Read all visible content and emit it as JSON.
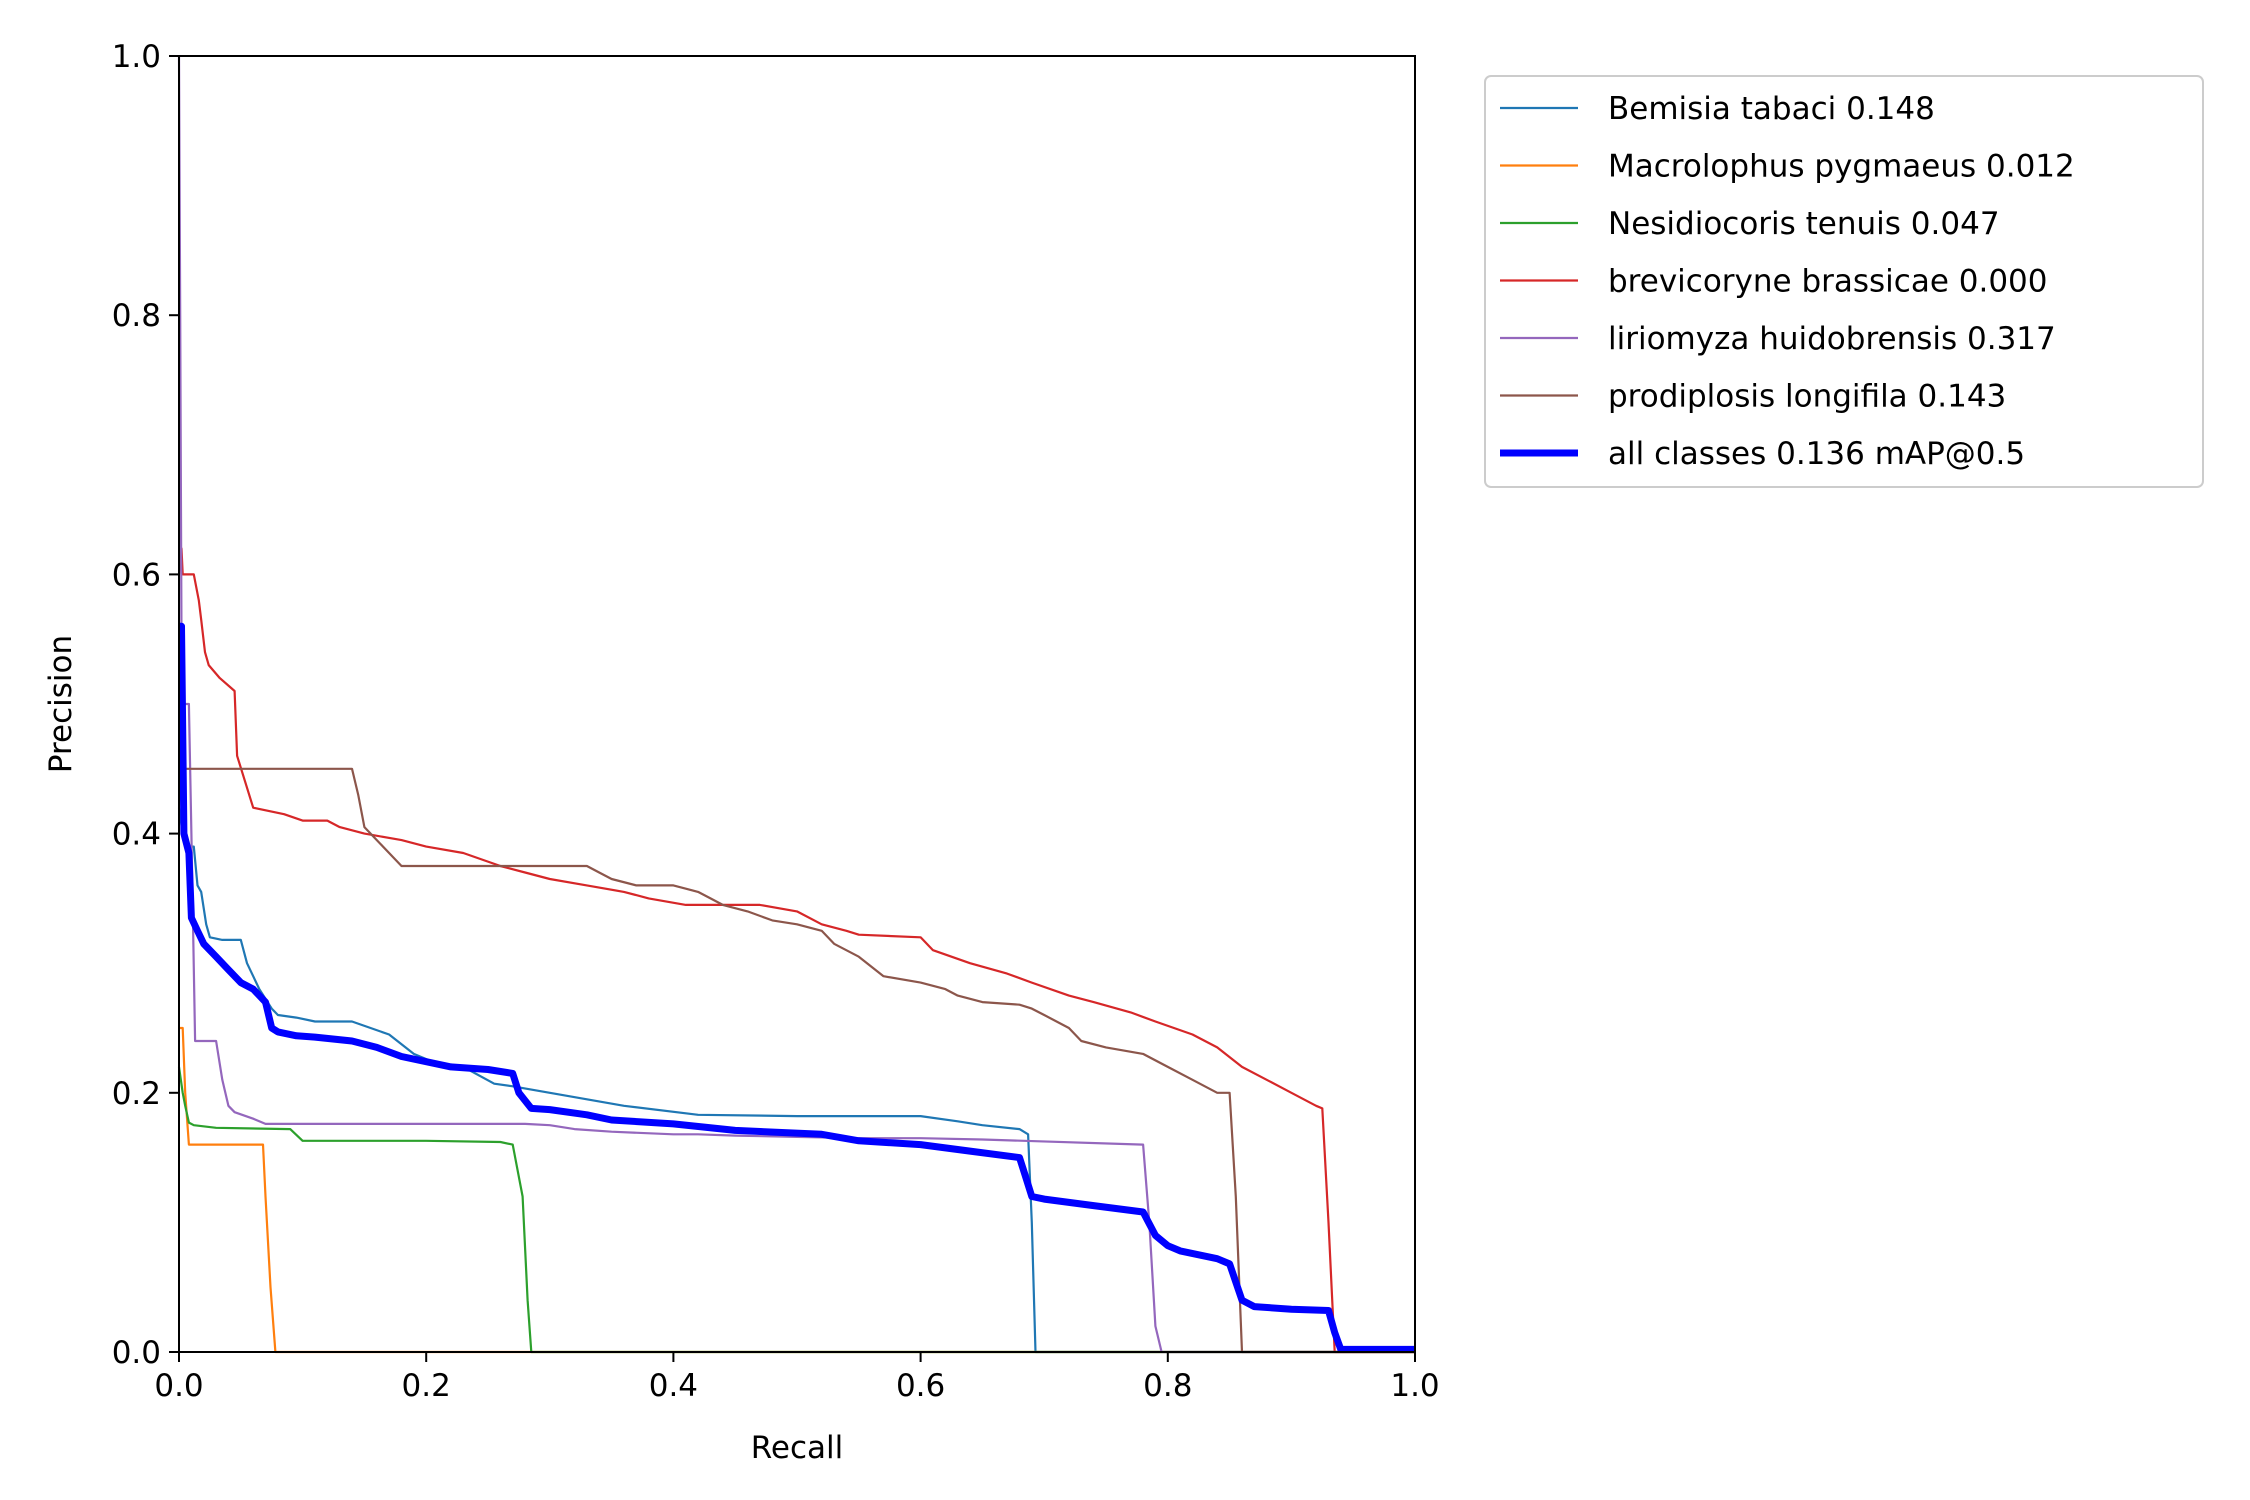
{
  "chart_data": {
    "type": "line",
    "title": "",
    "xlabel": "Recall",
    "ylabel": "Precision",
    "xlim": [
      0.0,
      1.0
    ],
    "ylim": [
      0.0,
      1.0
    ],
    "xticks": [
      "0.0",
      "0.2",
      "0.4",
      "0.6",
      "0.8",
      "1.0"
    ],
    "yticks": [
      "0.0",
      "0.2",
      "0.4",
      "0.6",
      "0.8",
      "1.0"
    ],
    "grid": false,
    "legend_position": "outside-top-right",
    "series": [
      {
        "name": "Bemisia tabaci 0.148",
        "color": "#1f77b4",
        "x": [
          0.0,
          0.003,
          0.006,
          0.012,
          0.015,
          0.018,
          0.022,
          0.025,
          0.035,
          0.05,
          0.055,
          0.06,
          0.065,
          0.075,
          0.08,
          0.095,
          0.11,
          0.14,
          0.17,
          0.19,
          0.21,
          0.23,
          0.255,
          0.27,
          0.3,
          0.33,
          0.36,
          0.42,
          0.5,
          0.6,
          0.63,
          0.65,
          0.68,
          0.687,
          0.69,
          0.693,
          1.0
        ],
        "y": [
          0.42,
          0.4,
          0.39,
          0.39,
          0.36,
          0.355,
          0.33,
          0.32,
          0.318,
          0.318,
          0.3,
          0.29,
          0.28,
          0.265,
          0.26,
          0.258,
          0.255,
          0.255,
          0.245,
          0.23,
          0.222,
          0.22,
          0.207,
          0.205,
          0.2,
          0.195,
          0.19,
          0.183,
          0.182,
          0.182,
          0.178,
          0.175,
          0.172,
          0.168,
          0.1,
          0.0,
          0.0
        ]
      },
      {
        "name": "Macrolophus pygmaeus 0.012",
        "color": "#ff7f0e",
        "x": [
          0.0,
          0.003,
          0.005,
          0.008,
          0.068,
          0.07,
          0.074,
          0.078,
          1.0
        ],
        "y": [
          0.25,
          0.25,
          0.2,
          0.16,
          0.16,
          0.12,
          0.05,
          0.0,
          0.0
        ]
      },
      {
        "name": "Nesidiocoris tenuis 0.047",
        "color": "#2ca02c",
        "x": [
          0.0,
          0.003,
          0.005,
          0.008,
          0.012,
          0.03,
          0.09,
          0.1,
          0.15,
          0.2,
          0.26,
          0.27,
          0.278,
          0.282,
          0.285,
          1.0
        ],
        "y": [
          0.22,
          0.2,
          0.19,
          0.177,
          0.175,
          0.173,
          0.172,
          0.163,
          0.163,
          0.163,
          0.162,
          0.16,
          0.12,
          0.04,
          0.0,
          0.0
        ]
      },
      {
        "name": "brevicoryne brassicae 0.000",
        "color": "#d62728",
        "x": [
          0.0,
          0.002,
          0.003,
          0.012,
          0.016,
          0.018,
          0.021,
          0.024,
          0.033,
          0.045,
          0.047,
          0.06,
          0.085,
          0.1,
          0.12,
          0.13,
          0.15,
          0.18,
          0.2,
          0.23,
          0.26,
          0.28,
          0.3,
          0.33,
          0.36,
          0.38,
          0.41,
          0.43,
          0.47,
          0.5,
          0.52,
          0.54,
          0.55,
          0.6,
          0.61,
          0.64,
          0.67,
          0.69,
          0.72,
          0.74,
          0.77,
          0.79,
          0.82,
          0.84,
          0.86,
          0.88,
          0.9,
          0.92,
          0.925,
          0.93,
          0.935,
          1.0
        ],
        "y": [
          0.6,
          0.62,
          0.6,
          0.6,
          0.58,
          0.565,
          0.54,
          0.53,
          0.52,
          0.51,
          0.46,
          0.42,
          0.415,
          0.41,
          0.41,
          0.405,
          0.4,
          0.395,
          0.39,
          0.385,
          0.375,
          0.37,
          0.365,
          0.36,
          0.355,
          0.35,
          0.345,
          0.345,
          0.345,
          0.34,
          0.33,
          0.325,
          0.322,
          0.32,
          0.31,
          0.3,
          0.292,
          0.285,
          0.275,
          0.27,
          0.262,
          0.255,
          0.245,
          0.235,
          0.22,
          0.21,
          0.2,
          0.19,
          0.188,
          0.1,
          0.0,
          0.0
        ]
      },
      {
        "name": "liriomyza huidobrensis 0.317",
        "color": "#9467bd",
        "x": [
          0.0,
          0.001,
          0.002,
          0.004,
          0.008,
          0.01,
          0.013,
          0.03,
          0.035,
          0.04,
          0.045,
          0.06,
          0.07,
          0.2,
          0.28,
          0.3,
          0.32,
          0.35,
          0.4,
          0.42,
          0.45,
          0.5,
          0.55,
          0.6,
          0.65,
          0.78,
          0.785,
          0.79,
          0.795,
          1.0
        ],
        "y": [
          1.0,
          0.8,
          0.55,
          0.5,
          0.5,
          0.4,
          0.24,
          0.24,
          0.21,
          0.19,
          0.185,
          0.18,
          0.176,
          0.176,
          0.176,
          0.175,
          0.172,
          0.17,
          0.168,
          0.168,
          0.167,
          0.166,
          0.165,
          0.165,
          0.164,
          0.16,
          0.1,
          0.02,
          0.0,
          0.0
        ]
      },
      {
        "name": "prodiplosis longifila 0.143",
        "color": "#8c564b",
        "x": [
          0.0,
          0.002,
          0.004,
          0.14,
          0.145,
          0.15,
          0.16,
          0.17,
          0.18,
          0.2,
          0.25,
          0.33,
          0.34,
          0.35,
          0.37,
          0.4,
          0.42,
          0.43,
          0.44,
          0.46,
          0.48,
          0.5,
          0.52,
          0.53,
          0.55,
          0.57,
          0.6,
          0.62,
          0.63,
          0.65,
          0.68,
          0.69,
          0.7,
          0.72,
          0.73,
          0.75,
          0.78,
          0.8,
          0.82,
          0.84,
          0.85,
          0.855,
          0.86,
          1.0
        ],
        "y": [
          0.45,
          0.45,
          0.45,
          0.45,
          0.43,
          0.405,
          0.395,
          0.385,
          0.375,
          0.375,
          0.375,
          0.375,
          0.37,
          0.365,
          0.36,
          0.36,
          0.355,
          0.35,
          0.345,
          0.34,
          0.333,
          0.33,
          0.325,
          0.315,
          0.305,
          0.29,
          0.285,
          0.28,
          0.275,
          0.27,
          0.268,
          0.265,
          0.26,
          0.25,
          0.24,
          0.235,
          0.23,
          0.22,
          0.21,
          0.2,
          0.2,
          0.12,
          0.0,
          0.0
        ]
      },
      {
        "name": "all classes 0.136 mAP@0.5",
        "color": "#0000ff",
        "thick": true,
        "x": [
          0.0,
          0.002,
          0.004,
          0.008,
          0.01,
          0.015,
          0.02,
          0.03,
          0.04,
          0.05,
          0.06,
          0.07,
          0.075,
          0.08,
          0.095,
          0.11,
          0.14,
          0.16,
          0.18,
          0.2,
          0.22,
          0.25,
          0.27,
          0.275,
          0.285,
          0.3,
          0.33,
          0.35,
          0.4,
          0.45,
          0.52,
          0.55,
          0.6,
          0.64,
          0.68,
          0.685,
          0.69,
          0.7,
          0.74,
          0.78,
          0.79,
          0.8,
          0.81,
          0.84,
          0.85,
          0.86,
          0.87,
          0.9,
          0.93,
          0.935,
          0.94,
          1.0
        ],
        "y": [
          0.56,
          0.56,
          0.4,
          0.385,
          0.335,
          0.325,
          0.315,
          0.305,
          0.295,
          0.285,
          0.28,
          0.27,
          0.25,
          0.247,
          0.244,
          0.243,
          0.24,
          0.235,
          0.228,
          0.224,
          0.22,
          0.218,
          0.215,
          0.2,
          0.188,
          0.187,
          0.183,
          0.179,
          0.176,
          0.171,
          0.168,
          0.163,
          0.16,
          0.155,
          0.15,
          0.135,
          0.12,
          0.118,
          0.113,
          0.108,
          0.09,
          0.082,
          0.078,
          0.072,
          0.068,
          0.04,
          0.035,
          0.033,
          0.032,
          0.015,
          0.002,
          0.002
        ]
      }
    ]
  }
}
